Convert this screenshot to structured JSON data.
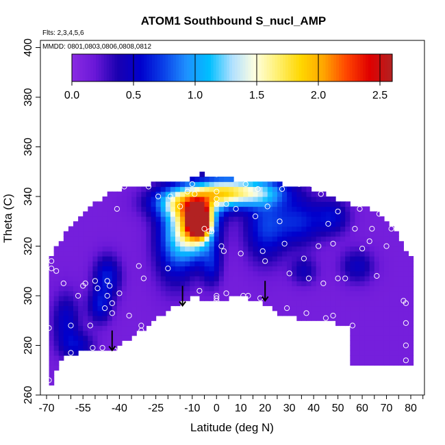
{
  "chart_data": {
    "type": "heatmap",
    "title": "ATOM1 Southbound S_nucl_AMP",
    "flights_note": "Flts: 2,3,4,5,6",
    "dates_note": "MMDD: 0801,0803,0806,0808,0812",
    "xlabel": "Latitude (deg N)",
    "ylabel": "Theta (C)",
    "xlim": [
      -70,
      85
    ],
    "ylim": [
      260,
      403
    ],
    "x_ticks": [
      -70,
      -55,
      -40,
      -25,
      -10,
      0,
      10,
      20,
      30,
      40,
      50,
      60,
      70,
      80
    ],
    "x_tick_labels": [
      "-70",
      "-55",
      "-40",
      "-25",
      "-10",
      "0",
      "10",
      "20",
      "30",
      "40",
      "50",
      "60",
      "70",
      "80"
    ],
    "x_minor_ticks": [
      -65,
      -60,
      -50,
      -45,
      -35,
      -30,
      -20,
      -15,
      -5,
      5,
      15,
      25,
      35,
      45,
      55,
      65,
      75,
      85
    ],
    "y_ticks": [
      260,
      280,
      300,
      320,
      340,
      360,
      380,
      400
    ],
    "y_tick_labels": [
      "260",
      "280",
      "300",
      "320",
      "340",
      "360",
      "380",
      "400"
    ],
    "colorbar": {
      "range": [
        0,
        2.6
      ],
      "ticks": [
        0,
        0.5,
        1,
        1.5,
        2,
        2.5
      ],
      "tick_labels": [
        "0.0",
        "0.5",
        "1.0",
        "1.5",
        "2.0",
        "2.5"
      ],
      "colors": [
        "#8A2BE2",
        "#6A18D8",
        "#1A00B0",
        "#0000CD",
        "#0A40E8",
        "#1E90FF",
        "#00BFFF",
        "#B0E0FF",
        "#FFFFE0",
        "#FFF070",
        "#FFD700",
        "#FFA500",
        "#FF4500",
        "#E00000",
        "#B22222"
      ]
    },
    "mask": {
      "upper_lat": [
        -70,
        -66,
        -62,
        -58,
        -54,
        -50,
        -46,
        -42,
        -38,
        -34,
        -30,
        -26,
        -22,
        -18,
        -14,
        -10,
        -6,
        -2,
        2,
        6,
        10,
        14,
        18,
        22,
        26,
        30,
        34,
        38,
        42,
        46,
        50,
        54,
        58,
        62,
        66,
        70,
        74,
        78,
        80
      ],
      "upper_theta": [
        311,
        320,
        325,
        330,
        334,
        337,
        340,
        342,
        343,
        344,
        344.5,
        345,
        345.5,
        346,
        346.5,
        347,
        349,
        348,
        347.5,
        347,
        346.5,
        346,
        345.5,
        345,
        345,
        344.5,
        344,
        343,
        342,
        340,
        338,
        337,
        336,
        335,
        333,
        330,
        325,
        318,
        315
      ],
      "lower_lat": [
        -70,
        -68,
        -64,
        -58,
        -54,
        -48,
        -44,
        -40,
        -36,
        -30,
        -26,
        -22,
        -18,
        -14,
        -10,
        -6,
        -2,
        2,
        6,
        10,
        14,
        18,
        22,
        26,
        30,
        34,
        38,
        42,
        46,
        50,
        54,
        56,
        56,
        80
      ],
      "lower_theta": [
        268,
        265,
        275,
        277,
        279,
        279,
        278,
        280,
        283,
        287,
        290,
        293,
        296,
        298,
        300,
        299,
        298,
        298,
        300,
        300,
        299,
        298,
        296,
        293,
        292,
        291,
        290,
        291,
        290,
        289,
        288,
        287,
        272,
        272
      ]
    },
    "blobs": [
      {
        "lat": -7,
        "theta": 330,
        "amp": 2.55,
        "sx": 3.0,
        "sy": 4.0
      },
      {
        "lat": -9,
        "theta": 328,
        "amp": 1.5,
        "sx": 6.0,
        "sy": 8.0
      },
      {
        "lat": -12,
        "theta": 338,
        "amp": 1.15,
        "sx": 10.0,
        "sy": 4.5
      },
      {
        "lat": 2,
        "theta": 342,
        "amp": 1.0,
        "sx": 8.0,
        "sy": 4.0
      },
      {
        "lat": 15,
        "theta": 342,
        "amp": 0.95,
        "sx": 10.0,
        "sy": 4.0
      },
      {
        "lat": -17,
        "theta": 322,
        "amp": 0.65,
        "sx": 6.0,
        "sy": 12.0
      },
      {
        "lat": 20,
        "theta": 328,
        "amp": 0.55,
        "sx": 6.0,
        "sy": 10.0
      },
      {
        "lat": 34,
        "theta": 330,
        "amp": 0.5,
        "sx": 7.0,
        "sy": 7.0
      },
      {
        "lat": -45,
        "theta": 308,
        "amp": 0.5,
        "sx": 4.0,
        "sy": 6.0
      },
      {
        "lat": -48,
        "theta": 296,
        "amp": 0.45,
        "sx": 3.5,
        "sy": 5.0
      },
      {
        "lat": -62,
        "theta": 290,
        "amp": 0.4,
        "sx": 4.0,
        "sy": 8.0
      },
      {
        "lat": -57,
        "theta": 280,
        "amp": 0.35,
        "sx": 5.0,
        "sy": 4.0
      },
      {
        "lat": 48,
        "theta": 332,
        "amp": 0.4,
        "sx": 5.0,
        "sy": 5.0
      },
      {
        "lat": -2,
        "theta": 312,
        "amp": 0.4,
        "sx": 3.0,
        "sy": 6.0
      },
      {
        "lat": 58,
        "theta": 312,
        "amp": 0.35,
        "sx": 5.0,
        "sy": 5.0
      },
      {
        "lat": 36,
        "theta": 310,
        "amp": 0.3,
        "sx": 4.0,
        "sy": 4.0
      }
    ],
    "points": [
      [
        -69,
        266
      ],
      [
        -69,
        287
      ],
      [
        -68,
        314
      ],
      [
        -68,
        311
      ],
      [
        -66,
        310
      ],
      [
        -63,
        305
      ],
      [
        -60,
        288
      ],
      [
        -60,
        277
      ],
      [
        -57,
        300
      ],
      [
        -55,
        304
      ],
      [
        -54,
        305
      ],
      [
        -52,
        288
      ],
      [
        -51,
        279
      ],
      [
        -50,
        306
      ],
      [
        -49,
        303
      ],
      [
        -47,
        279
      ],
      [
        -46,
        295
      ],
      [
        -45,
        306
      ],
      [
        -45,
        300
      ],
      [
        -44,
        304
      ],
      [
        -43,
        297
      ],
      [
        -43,
        293
      ],
      [
        -42,
        278
      ],
      [
        -41,
        335
      ],
      [
        -40,
        301
      ],
      [
        -38,
        344
      ],
      [
        -36,
        292
      ],
      [
        -32,
        312
      ],
      [
        -31,
        286
      ],
      [
        -31,
        288
      ],
      [
        -30,
        307
      ],
      [
        -28,
        344
      ],
      [
        -24,
        340
      ],
      [
        -20,
        311
      ],
      [
        -19,
        340
      ],
      [
        -15,
        336
      ],
      [
        -12,
        342
      ],
      [
        -10,
        345
      ],
      [
        -9,
        341
      ],
      [
        -7,
        302
      ],
      [
        -5,
        327
      ],
      [
        -3,
        326
      ],
      [
        -2,
        326
      ],
      [
        0,
        349
      ],
      [
        0,
        342
      ],
      [
        0,
        339
      ],
      [
        0,
        337
      ],
      [
        0,
        300
      ],
      [
        0,
        299
      ],
      [
        0,
        298
      ],
      [
        2,
        320
      ],
      [
        3,
        318
      ],
      [
        4,
        337
      ],
      [
        4,
        301
      ],
      [
        8,
        335
      ],
      [
        10,
        317
      ],
      [
        11,
        300
      ],
      [
        12,
        345
      ],
      [
        13,
        300
      ],
      [
        16,
        332
      ],
      [
        17,
        343
      ],
      [
        18,
        299
      ],
      [
        19,
        318
      ],
      [
        20,
        314
      ],
      [
        21,
        336
      ],
      [
        26,
        330
      ],
      [
        27,
        343
      ],
      [
        28,
        321
      ],
      [
        29,
        295
      ],
      [
        30,
        309
      ],
      [
        34,
        345
      ],
      [
        36,
        315
      ],
      [
        37,
        293
      ],
      [
        38,
        307
      ],
      [
        39,
        345
      ],
      [
        42,
        320
      ],
      [
        43,
        341
      ],
      [
        44,
        305
      ],
      [
        45,
        291
      ],
      [
        46,
        329
      ],
      [
        48,
        321
      ],
      [
        48,
        292
      ],
      [
        50,
        307
      ],
      [
        50,
        334
      ],
      [
        53,
        307
      ],
      [
        56,
        288
      ],
      [
        57,
        327
      ],
      [
        59,
        335
      ],
      [
        60,
        319
      ],
      [
        63,
        322
      ],
      [
        64,
        327
      ],
      [
        66,
        308
      ],
      [
        67,
        333
      ],
      [
        70,
        320
      ],
      [
        72,
        327
      ],
      [
        75,
        336
      ],
      [
        77,
        298
      ],
      [
        78,
        297
      ],
      [
        78,
        289
      ],
      [
        78,
        280
      ],
      [
        78,
        274
      ]
    ],
    "arrows": [
      {
        "lat": -43,
        "theta_top": 286,
        "theta_bottom": 278
      },
      {
        "lat": -14,
        "theta_top": 304,
        "theta_bottom": 296
      },
      {
        "lat": 20,
        "theta_top": 306,
        "theta_bottom": 298
      }
    ]
  }
}
